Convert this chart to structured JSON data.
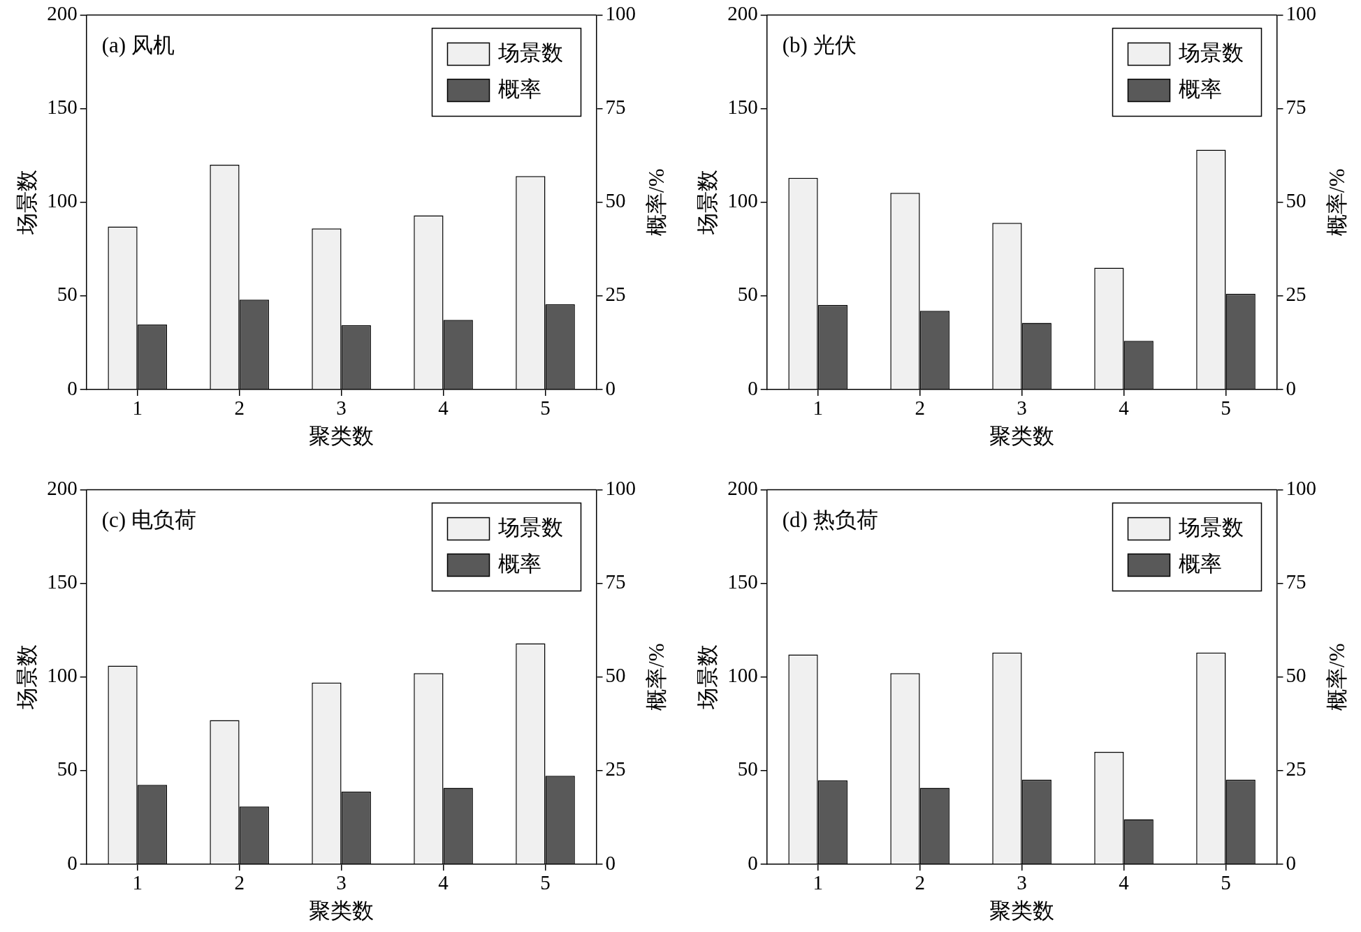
{
  "chart_data": [
    {
      "type": "bar",
      "title": "(a) 风机",
      "xlabel": "聚类数",
      "ylabel": "场景数",
      "y2label": "概率/%",
      "categories": [
        "1",
        "2",
        "3",
        "4",
        "5"
      ],
      "series": [
        {
          "name": "场景数",
          "color": "#f0f0f0",
          "values": [
            87,
            120,
            86,
            93,
            114
          ]
        },
        {
          "name": "概率",
          "color": "#595959",
          "values": [
            17.4,
            24,
            17.2,
            18.6,
            22.8
          ],
          "axis": "y2"
        }
      ],
      "ylim": [
        0,
        200
      ],
      "yticks": [
        0,
        50,
        100,
        150,
        200
      ],
      "y2lim": [
        0,
        100
      ],
      "y2ticks": [
        0,
        25,
        50,
        75,
        100
      ],
      "legend": "top right"
    },
    {
      "type": "bar",
      "title": "(b) 光伏",
      "xlabel": "聚类数",
      "ylabel": "场景数",
      "y2label": "概率/%",
      "categories": [
        "1",
        "2",
        "3",
        "4",
        "5"
      ],
      "series": [
        {
          "name": "场景数",
          "color": "#f0f0f0",
          "values": [
            113,
            105,
            89,
            65,
            128
          ]
        },
        {
          "name": "概率",
          "color": "#595959",
          "values": [
            22.6,
            21,
            17.8,
            13,
            25.6
          ],
          "axis": "y2"
        }
      ],
      "ylim": [
        0,
        200
      ],
      "yticks": [
        0,
        50,
        100,
        150,
        200
      ],
      "y2lim": [
        0,
        100
      ],
      "y2ticks": [
        0,
        25,
        50,
        75,
        100
      ],
      "legend": "top right"
    },
    {
      "type": "bar",
      "title": "(c) 电负荷",
      "xlabel": "聚类数",
      "ylabel": "场景数",
      "y2label": "概率/%",
      "categories": [
        "1",
        "2",
        "3",
        "4",
        "5"
      ],
      "series": [
        {
          "name": "场景数",
          "color": "#f0f0f0",
          "values": [
            106,
            77,
            97,
            102,
            118
          ]
        },
        {
          "name": "概率",
          "color": "#595959",
          "values": [
            21.2,
            15.4,
            19.4,
            20.4,
            23.6
          ],
          "axis": "y2"
        }
      ],
      "ylim": [
        0,
        200
      ],
      "yticks": [
        0,
        50,
        100,
        150,
        200
      ],
      "y2lim": [
        0,
        100
      ],
      "y2ticks": [
        0,
        25,
        50,
        75,
        100
      ],
      "legend": "top right"
    },
    {
      "type": "bar",
      "title": "(d) 热负荷",
      "xlabel": "聚类数",
      "ylabel": "场景数",
      "y2label": "概率/%",
      "categories": [
        "1",
        "2",
        "3",
        "4",
        "5"
      ],
      "series": [
        {
          "name": "场景数",
          "color": "#f0f0f0",
          "values": [
            112,
            102,
            113,
            60,
            113
          ]
        },
        {
          "name": "概率",
          "color": "#595959",
          "values": [
            22.4,
            20.4,
            22.6,
            12,
            22.6
          ],
          "axis": "y2"
        }
      ],
      "ylim": [
        0,
        200
      ],
      "yticks": [
        0,
        50,
        100,
        150,
        200
      ],
      "y2lim": [
        0,
        100
      ],
      "y2ticks": [
        0,
        25,
        50,
        75,
        100
      ],
      "legend": "top right"
    }
  ]
}
